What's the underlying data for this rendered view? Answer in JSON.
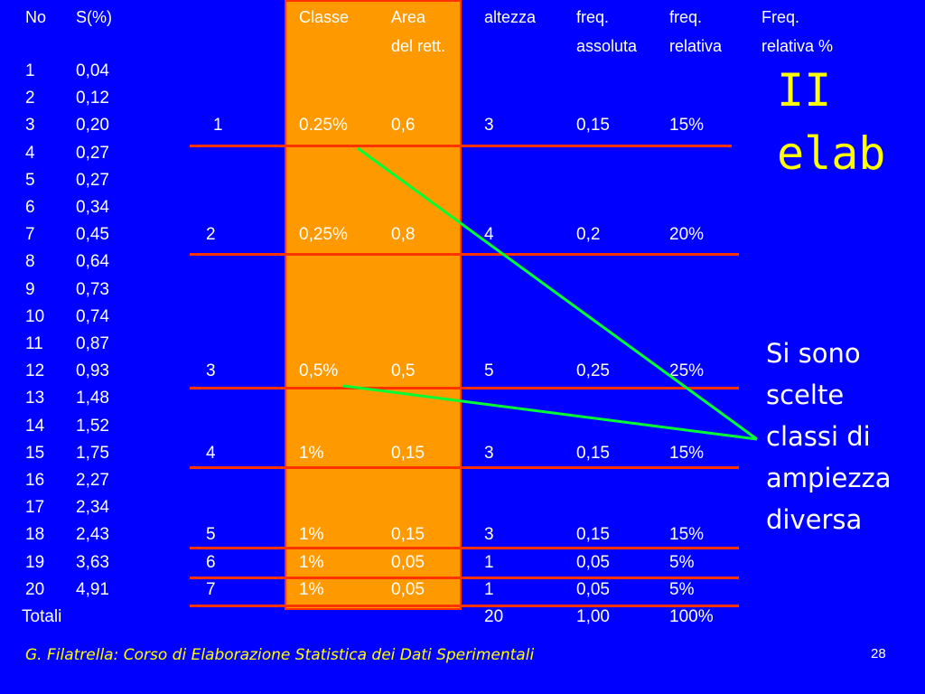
{
  "headers": {
    "no": "No",
    "s": "S(%)",
    "classe": "Classe",
    "area_1": "Area",
    "area_2": "del rett.",
    "altezza": "altezza",
    "freq_ass_1": "freq.",
    "freq_ass_2": "assoluta",
    "freq_rel_1": "freq.",
    "freq_rel_2": "relativa",
    "freq_pct_1": "Freq.",
    "freq_pct_2": "relativa %"
  },
  "data_rows": [
    {
      "no": "1",
      "s": "0,04"
    },
    {
      "no": "2",
      "s": "0,12"
    },
    {
      "no": "3",
      "s": "0,20"
    },
    {
      "no": "4",
      "s": "0,27"
    },
    {
      "no": "5",
      "s": "0,27"
    },
    {
      "no": "6",
      "s": "0,34"
    },
    {
      "no": "7",
      "s": "0,45"
    },
    {
      "no": "8",
      "s": "0,64"
    },
    {
      "no": "9",
      "s": "0,73"
    },
    {
      "no": "10",
      "s": "0,74"
    },
    {
      "no": "11",
      "s": "0,87"
    },
    {
      "no": "12",
      "s": "0,93"
    },
    {
      "no": "13",
      "s": "1,48"
    },
    {
      "no": "14",
      "s": "1,52"
    },
    {
      "no": "15",
      "s": "1,75"
    },
    {
      "no": "16",
      "s": "2,27"
    },
    {
      "no": "17",
      "s": "2,34"
    },
    {
      "no": "18",
      "s": "2,43"
    },
    {
      "no": "19",
      "s": "3,63"
    },
    {
      "no": "20",
      "s": "4,91"
    }
  ],
  "classes": [
    {
      "row": 2,
      "n": "1",
      "classe": "0.25%",
      "area": "0,6",
      "altezza": "3",
      "freq_ass": "0,15",
      "freq_rel": "15%"
    },
    {
      "row": 6,
      "n": "2",
      "classe": "0,25%",
      "area": "0,8",
      "altezza": "4",
      "freq_ass": "0,2",
      "freq_rel": "20%"
    },
    {
      "row": 11,
      "n": "3",
      "classe": "0,5%",
      "area": "0,5",
      "altezza": "5",
      "freq_ass": "0,25",
      "freq_rel": "25%"
    },
    {
      "row": 14,
      "n": "4",
      "classe": "1%",
      "area": "0,15",
      "altezza": "3",
      "freq_ass": "0,15",
      "freq_rel": "15%"
    },
    {
      "row": 17,
      "n": "5",
      "classe": "1%",
      "area": "0,15",
      "altezza": "3",
      "freq_ass": "0,15",
      "freq_rel": "15%"
    },
    {
      "row": 18,
      "n": "6",
      "classe": "1%",
      "area": "0,05",
      "altezza": "1",
      "freq_ass": "0,05",
      "freq_rel": "5%"
    },
    {
      "row": 19,
      "n": "7",
      "classe": "1%",
      "area": "0,05",
      "altezza": "1",
      "freq_ass": "0,05",
      "freq_rel": "5%"
    }
  ],
  "totals": {
    "label": "Totali",
    "altezza": "20",
    "freq_ass": "1,00",
    "freq_rel": "100%"
  },
  "title_lines": [
    "II",
    "elab"
  ],
  "note_lines": [
    "Si sono",
    "scelte",
    "classi di",
    "ampiezza",
    "diversa"
  ],
  "footer": "G. Filatrella: Corso di Elaborazione Statistica dei Dati Sperimentali",
  "page_number": "28",
  "colors": {
    "background": "#0000ff",
    "highlight_column": "#ff9900",
    "separator": "#ff3300",
    "arrow": "#00ff33",
    "title": "#ffff00"
  }
}
